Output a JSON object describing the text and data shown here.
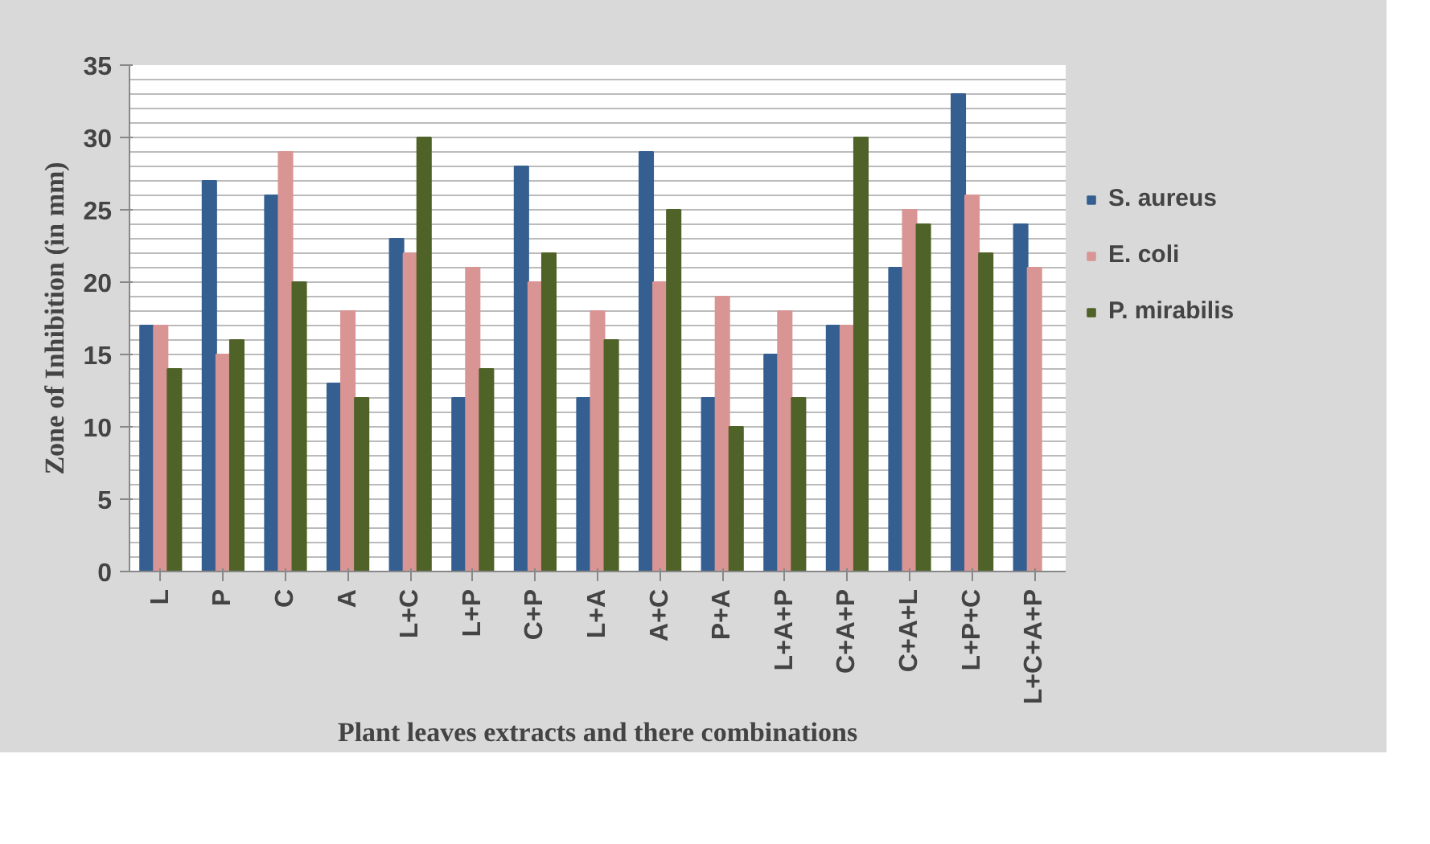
{
  "chart_data": {
    "type": "bar",
    "xlabel": "Plant leaves extracts and there combinations",
    "ylabel": "Zone of Inhibition (in mm)",
    "categories": [
      "L",
      "P",
      "C",
      "A",
      "L+C",
      "L+P",
      "C+P",
      "L+A",
      "A+C",
      "P+A",
      "L+A+P",
      "C+A+P",
      "C+A+L",
      "L+P+C",
      "L+C+A+P"
    ],
    "series": [
      {
        "name": "S. aureus",
        "color": "#355f91",
        "values": [
          17,
          27,
          26,
          13,
          23,
          12,
          28,
          12,
          29,
          12,
          15,
          17,
          21,
          33,
          24
        ]
      },
      {
        "name": "E. coli",
        "color": "#d99594",
        "values": [
          17,
          15,
          29,
          18,
          22,
          21,
          20,
          18,
          20,
          19,
          18,
          17,
          25,
          26,
          21
        ]
      },
      {
        "name": "P. mirabilis",
        "color": "#4f6228",
        "values": [
          14,
          16,
          20,
          12,
          30,
          14,
          22,
          16,
          25,
          10,
          12,
          30,
          24,
          22,
          null
        ]
      }
    ],
    "ylim": [
      0,
      35
    ],
    "yticks": [
      0,
      5,
      10,
      15,
      20,
      25,
      30,
      35
    ],
    "grid": "y",
    "legend": "right"
  }
}
